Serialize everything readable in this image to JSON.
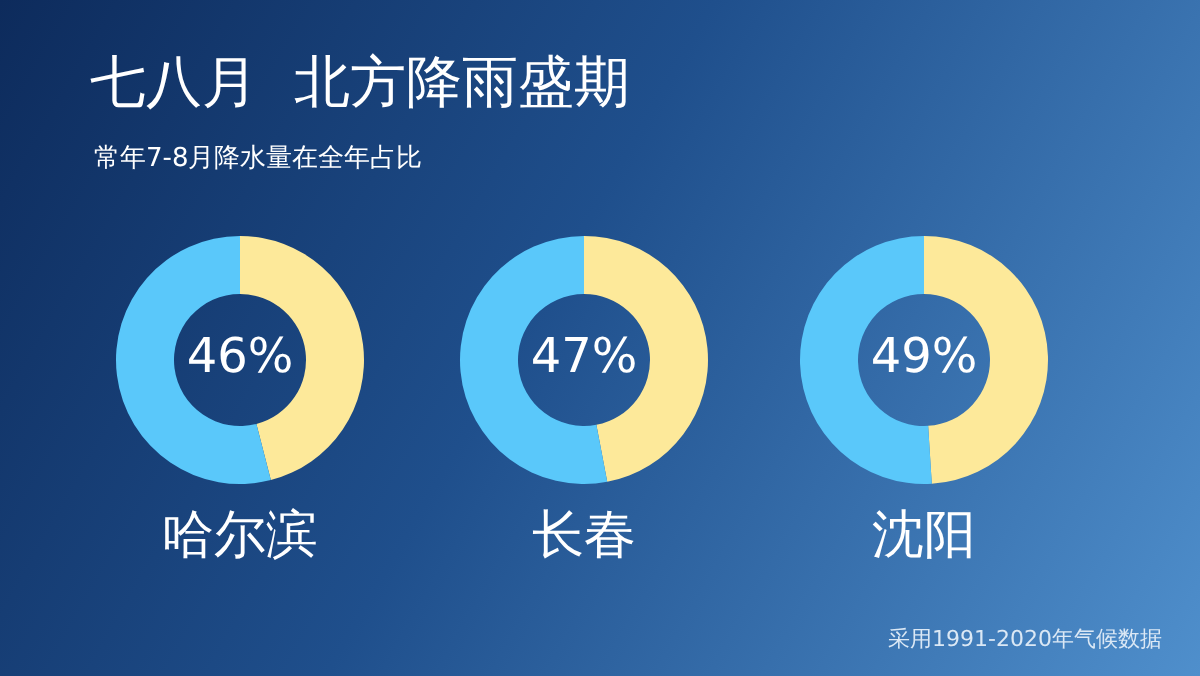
{
  "chart_data": [
    {
      "type": "other",
      "title": "七八月  北方降雨盛期",
      "subtitle": "常年7-8月降水量在全年占比",
      "annotations": [
        "采用1991-2020年气候数据"
      ]
    },
    {
      "type": "donut",
      "title": "哈尔滨",
      "categories": [
        null,
        null
      ],
      "values": [
        46,
        54
      ],
      "colors": [
        "#fde99a",
        "#5ac8fa"
      ],
      "annotations": [
        "46%"
      ]
    },
    {
      "type": "donut",
      "title": "长春",
      "categories": [
        null,
        null
      ],
      "values": [
        47,
        53
      ],
      "colors": [
        "#fde99a",
        "#5ac8fa"
      ],
      "annotations": [
        "47%"
      ]
    },
    {
      "type": "donut",
      "title": "沈阳",
      "categories": [
        null,
        null
      ],
      "values": [
        49,
        51
      ],
      "colors": [
        "#fde99a",
        "#5ac8fa"
      ],
      "annotations": [
        "49%"
      ]
    }
  ]
}
